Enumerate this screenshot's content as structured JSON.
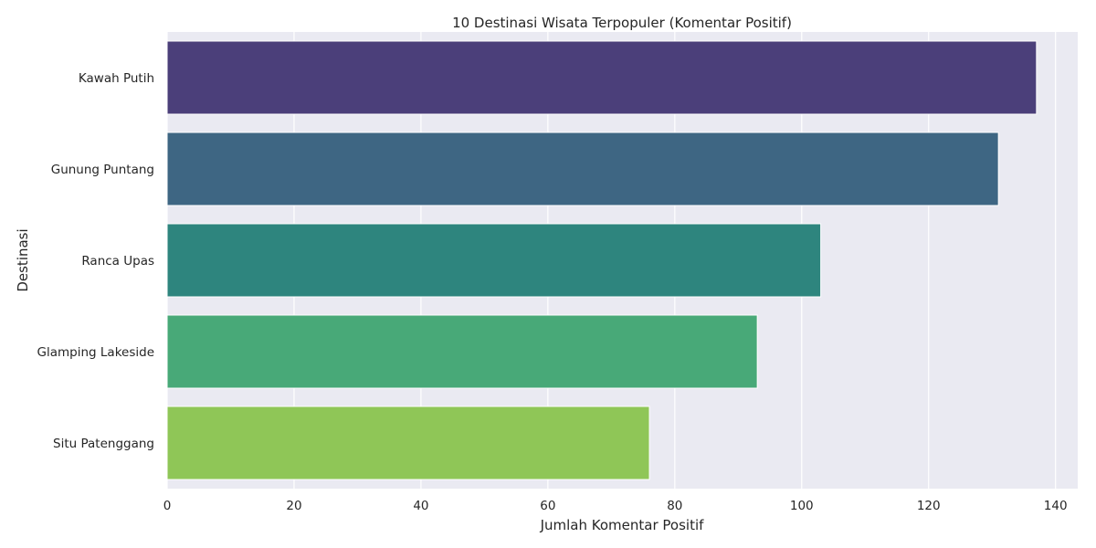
{
  "chart_data": {
    "type": "bar",
    "orientation": "horizontal",
    "title": "10 Destinasi Wisata Terpopuler (Komentar Positif)",
    "xlabel": "Jumlah Komentar Positif",
    "ylabel": "Destinasi",
    "categories": [
      "Kawah Putih",
      "Gunung Puntang",
      "Ranca Upas",
      "Glamping Lakeside",
      "Situ Patenggang"
    ],
    "values": [
      137,
      131,
      103,
      93,
      76
    ],
    "colors": [
      "#4b3f7a",
      "#3e6683",
      "#2e857e",
      "#48a978",
      "#8fc657"
    ],
    "xlim": [
      0,
      143.5
    ],
    "xticks": [
      0,
      20,
      40,
      60,
      80,
      100,
      120,
      140
    ],
    "grid": true,
    "background": "#eaeaf2",
    "grid_color": "#ffffff"
  }
}
